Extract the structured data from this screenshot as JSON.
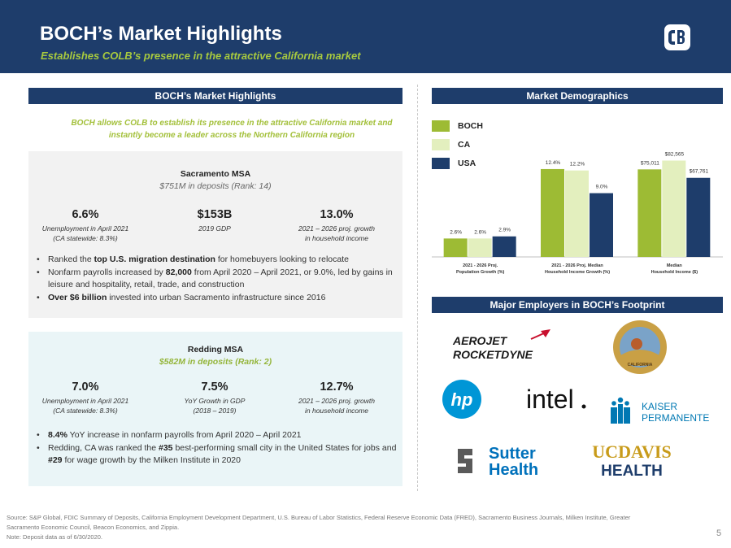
{
  "header": {
    "title": "BOCH’s Market Highlights",
    "subtitle": "Establishes COLB’s presence in the attractive California market"
  },
  "left": {
    "section_title": "BOCH’s Market Highlights",
    "intro": "BOCH allows COLB to establish its presence in the attractive California market and instantly become a leader across the Northern California region",
    "sacramento": {
      "title": "Sacramento MSA",
      "deposits": "$751M in deposits (Rank: 14)",
      "stats": [
        {
          "value": "6.6%",
          "label1": "Unemployment in April 2021",
          "label2": "(CA statewide: 8.3%)"
        },
        {
          "value": "$153B",
          "label1": "2019 GDP",
          "label2": ""
        },
        {
          "value": "13.0%",
          "label1": "2021 – 2026 proj. growth",
          "label2": "in household income"
        }
      ],
      "bullets": [
        {
          "p1": "Ranked the ",
          "b1": "top U.S. migration destination",
          "p2": " for homebuyers looking to relocate",
          "b2": "",
          "p3": ""
        },
        {
          "p1": "Nonfarm payrolls increased by ",
          "b1": "82,000",
          "p2": " from April 2020 – April 2021, or 9.0%, led by gains in leisure and hospitality, retail, trade, and construction",
          "b2": "",
          "p3": ""
        },
        {
          "p1": "",
          "b1": "Over $6 billion",
          "p2": " invested into urban Sacramento infrastructure since 2016",
          "b2": "",
          "p3": ""
        }
      ]
    },
    "redding": {
      "title": "Redding MSA",
      "deposits": "$582M in deposits (Rank: 2)",
      "stats": [
        {
          "value": "7.0%",
          "label1": "Unemployment in April 2021",
          "label2": "(CA statewide: 8.3%)"
        },
        {
          "value": "7.5%",
          "label1": "YoY Growth in GDP",
          "label2": "(2018 – 2019)"
        },
        {
          "value": "12.7%",
          "label1": "2021 – 2026 proj. growth",
          "label2": "in household income"
        }
      ],
      "bullets": [
        {
          "p1": "",
          "b1": "8.4%",
          "p2": " YoY increase in nonfarm payrolls from April 2020 – April 2021",
          "b2": "",
          "p3": ""
        },
        {
          "p1": "Redding, CA was ranked the ",
          "b1": "#35",
          "p2": " best-performing small city in the United States for jobs and ",
          "b2": "#29",
          "p3": " for wage growth by the Milken Institute in 2020"
        }
      ]
    }
  },
  "right": {
    "demographics_title": "Market Demographics",
    "employers_title": "Major Employers in BOCH’s Footprint",
    "employers": {
      "aerojet": {
        "line1": "AEROJET",
        "line2": "ROCKETDYNE"
      },
      "seal": {
        "text": "CALIFORNIA"
      },
      "hp": {
        "text": "hp"
      },
      "intel": {
        "text": "intel"
      },
      "kaiser": {
        "line1": "KAISER",
        "line2": "PERMANENTE"
      },
      "sutter": {
        "line1": "Sutter",
        "line2": "Health"
      },
      "ucdavis": {
        "line1": "UCDAVIS",
        "line2": "HEALTH"
      }
    }
  },
  "chart_data": {
    "type": "bar",
    "title": "Market Demographics",
    "categories": [
      "2021 - 2026 Proj. Population Growth (%)",
      "2021 - 2026 Proj. Median Household Income Growth (%)",
      "Median Household Income ($)"
    ],
    "category_lines": [
      [
        "2021 - 2026 Proj.",
        "Population Growth (%)"
      ],
      [
        "2021 - 2026 Proj. Median",
        "Household Income Growth (%)"
      ],
      [
        "Median",
        "Household Income ($)"
      ]
    ],
    "series": [
      {
        "name": "BOCH",
        "color": "#9dbb34",
        "values": [
          2.6,
          12.4,
          75011
        ],
        "labels": [
          "2.6%",
          "12.4%",
          "$75,011"
        ]
      },
      {
        "name": "CA",
        "color": "#e3efbe",
        "values": [
          2.6,
          12.2,
          82565
        ],
        "labels": [
          "2.6%",
          "12.2%",
          "$82,565"
        ]
      },
      {
        "name": "USA",
        "color": "#1e3d6b",
        "values": [
          2.9,
          9.0,
          67761
        ],
        "labels": [
          "2.9%",
          "9.0%",
          "$67,761"
        ]
      }
    ],
    "group_max": [
      14.0,
      14.0,
      85000
    ],
    "legend_position": "top-left"
  },
  "footer": {
    "source": "Source: S&P Global, FDIC Summary of Deposits, California Employment Development Department, U.S. Bureau of Labor Statistics, Federal Reserve Economic Data (FRED), Sacramento Business Journals, Milken Institute, Greater Sacramento Economic Council, Beacon Economics, and Zippia.",
    "note": "Note: Deposit data as of 6/30/2020.",
    "page": "5"
  }
}
